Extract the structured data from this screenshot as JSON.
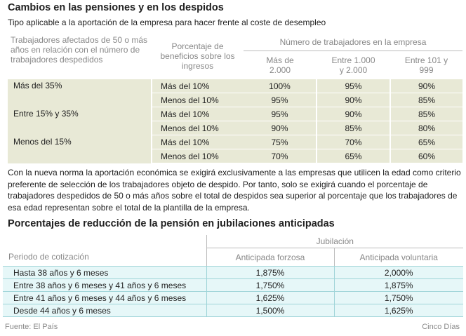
{
  "section1": {
    "title": "Cambios en las pensiones y en los despidos",
    "subtitle": "Tipo aplicable a la aportación de la empresa para hacer frente al coste de desempleo",
    "header": {
      "col1": "Trabajadores afectados de 50 o más años en relación con el número de trabajadores despedidos",
      "col2": "Porcentaje de beneficios sobre los ingresos",
      "group": "Número de trabajadores en la empresa",
      "col3": "Más de 2.000",
      "col4": "Entre 1.000 y 2.000",
      "col5": "Entre 101 y 999"
    },
    "rows": [
      {
        "cat": "Más del 35%",
        "pct": "Más del 10%",
        "v1": "100%",
        "v2": "95%",
        "v3": "90%"
      },
      {
        "cat": "",
        "pct": "Menos del 10%",
        "v1": "95%",
        "v2": "90%",
        "v3": "85%"
      },
      {
        "cat": "Entre 15% y 35%",
        "pct": "Más del 10%",
        "v1": "95%",
        "v2": "90%",
        "v3": "85%"
      },
      {
        "cat": "",
        "pct": "Menos del 10%",
        "v1": "90%",
        "v2": "85%",
        "v3": "80%"
      },
      {
        "cat": "Menos del 15%",
        "pct": "Más del 10%",
        "v1": "75%",
        "v2": "70%",
        "v3": "65%"
      },
      {
        "cat": "",
        "pct": "Menos del 10%",
        "v1": "70%",
        "v2": "65%",
        "v3": "60%"
      }
    ],
    "paragraph": "Con la nueva norma la aportación económica se exigirá exclusivamente a las empresas que utilicen la edad como criterio preferente de selección de los trabajadores objeto de despido. Por tanto, solo se exigirá cuando el porcentaje de trabajadores despedidos de 50 o más años sobre el total de despidos sea superior al porcentaje que los trabajadores de esa edad representan sobre el total de la plantilla de la empresa."
  },
  "section2": {
    "title": "Porcentajes de reducción de la pensión en jubilaciones anticipadas",
    "group": "Jubilación",
    "col1": "Periodo de cotización",
    "col2": "Anticipada forzosa",
    "col3": "Anticipada voluntaria",
    "rows": [
      {
        "label": "Hasta 38 años y 6 meses",
        "forzosa": "1,875%",
        "voluntaria": "2,000%"
      },
      {
        "label": "Entre 38 años y 6 meses y 41 años y 6 meses",
        "forzosa": "1,750%",
        "voluntaria": "1,875%"
      },
      {
        "label": "Entre 41 años y 6 meses y 44 años y 6 meses",
        "forzosa": "1,625%",
        "voluntaria": "1,750%"
      },
      {
        "label": "Desde 44 años y 6 meses",
        "forzosa": "1,500%",
        "voluntaria": "1,625%"
      }
    ]
  },
  "footer": {
    "source": "Fuente: El País",
    "brand": "Cinco Días"
  }
}
